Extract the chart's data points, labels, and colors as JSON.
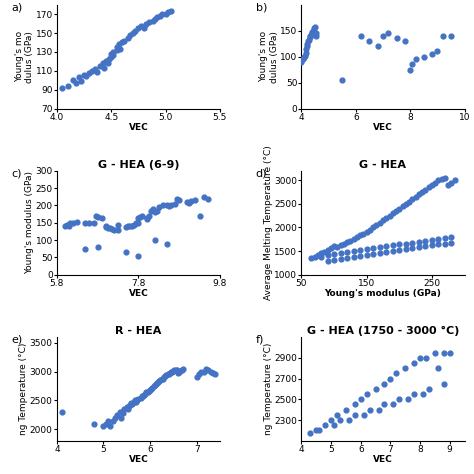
{
  "subplot_a": {
    "title": "",
    "label": "a)",
    "xlabel": "VEC",
    "ylabel": "Young's mo\ndulus (GPa)",
    "xlim": [
      4.0,
      5.5
    ],
    "ylim": [
      70,
      180
    ],
    "xticks": [
      4.0,
      4.5,
      5.0,
      5.5
    ],
    "yticks": [
      70,
      90,
      110,
      130,
      150,
      170
    ],
    "x": [
      4.05,
      4.1,
      4.15,
      4.18,
      4.2,
      4.22,
      4.25,
      4.27,
      4.3,
      4.32,
      4.35,
      4.37,
      4.4,
      4.42,
      4.43,
      4.45,
      4.47,
      4.48,
      4.5,
      4.5,
      4.52,
      4.52,
      4.55,
      4.55,
      4.57,
      4.58,
      4.6,
      4.62,
      4.65,
      4.67,
      4.7,
      4.72,
      4.75,
      4.77,
      4.8,
      4.82,
      4.85,
      4.88,
      4.9,
      4.92,
      4.95,
      4.97,
      5.0,
      5.02,
      5.05
    ],
    "y": [
      92,
      94,
      100,
      97,
      103,
      99,
      106,
      104,
      108,
      110,
      112,
      109,
      115,
      118,
      113,
      120,
      118,
      122,
      125,
      128,
      130,
      127,
      132,
      135,
      138,
      133,
      140,
      142,
      145,
      148,
      150,
      152,
      155,
      158,
      155,
      160,
      162,
      163,
      165,
      167,
      168,
      170,
      170,
      172,
      173
    ]
  },
  "subplot_b": {
    "title": "",
    "label": "b)",
    "xlabel": "VEC",
    "ylabel": "Young's mo\ndulus (GPa)",
    "xlim": [
      4.0,
      10.0
    ],
    "ylim": [
      0,
      200
    ],
    "xticks": [
      4,
      6,
      8,
      10
    ],
    "yticks": [
      0,
      50,
      100,
      150
    ],
    "x": [
      4.0,
      4.05,
      4.1,
      4.12,
      4.15,
      4.18,
      4.2,
      4.22,
      4.25,
      4.28,
      4.3,
      4.32,
      4.35,
      4.38,
      4.4,
      4.42,
      4.45,
      4.47,
      4.5,
      4.52,
      4.55,
      5.5,
      6.2,
      6.5,
      6.8,
      7.0,
      7.2,
      7.5,
      7.8,
      8.0,
      8.05,
      8.2,
      8.5,
      8.8,
      9.0,
      9.2,
      9.5
    ],
    "y": [
      90,
      95,
      100,
      102,
      108,
      115,
      120,
      125,
      130,
      133,
      138,
      140,
      142,
      145,
      148,
      150,
      148,
      155,
      158,
      145,
      140,
      55,
      140,
      130,
      120,
      140,
      145,
      135,
      130,
      75,
      85,
      95,
      100,
      105,
      110,
      140,
      140
    ]
  },
  "subplot_c": {
    "title": "G - HEA (6-9)",
    "label": "c)",
    "xlabel": "VEC",
    "ylabel": "Young's modulus (GPa)",
    "xlim": [
      5.8,
      9.8
    ],
    "ylim": [
      0,
      300
    ],
    "xticks": [
      5.8,
      7.8,
      9.8
    ],
    "yticks": [
      0,
      50,
      100,
      150,
      200,
      250,
      300
    ],
    "x": [
      6.0,
      6.05,
      6.1,
      6.12,
      6.2,
      6.3,
      6.5,
      6.6,
      6.7,
      6.75,
      6.8,
      6.9,
      7.0,
      7.0,
      7.05,
      7.1,
      7.15,
      7.2,
      7.3,
      7.5,
      7.55,
      7.6,
      7.65,
      7.7,
      7.75,
      7.8,
      7.8,
      7.85,
      7.9,
      8.0,
      8.0,
      8.05,
      8.1,
      8.15,
      8.2,
      8.25,
      8.3,
      8.4,
      8.5,
      8.55,
      8.6,
      8.7,
      8.75,
      8.8,
      9.0,
      9.05,
      9.1,
      9.2,
      9.3,
      9.4,
      9.5,
      7.3,
      7.5,
      7.8,
      8.2,
      8.5,
      6.5,
      6.8
    ],
    "y": [
      142,
      145,
      140,
      148,
      148,
      152,
      148,
      150,
      148,
      170,
      168,
      165,
      140,
      138,
      135,
      135,
      132,
      130,
      128,
      138,
      140,
      140,
      142,
      145,
      148,
      150,
      165,
      168,
      170,
      160,
      165,
      170,
      185,
      190,
      180,
      185,
      195,
      200,
      200,
      198,
      202,
      205,
      220,
      215,
      210,
      208,
      212,
      215,
      170,
      225,
      220,
      145,
      65,
      55,
      100,
      90,
      75,
      80
    ]
  },
  "subplot_d": {
    "title": "G - HEA",
    "label": "d)",
    "xlabel": "Young's modulus (GPa)",
    "ylabel": "Average Melting Temperature (°C)",
    "xlim": [
      50,
      300
    ],
    "ylim": [
      1000,
      3200
    ],
    "xticks": [
      50,
      150,
      250
    ],
    "yticks": [
      1000,
      1500,
      2000,
      2500,
      3000
    ],
    "x": [
      65,
      70,
      75,
      80,
      85,
      90,
      95,
      100,
      105,
      110,
      115,
      120,
      125,
      130,
      135,
      140,
      145,
      150,
      155,
      160,
      165,
      170,
      175,
      180,
      185,
      190,
      195,
      200,
      205,
      210,
      215,
      220,
      225,
      230,
      235,
      240,
      245,
      250,
      255,
      260,
      265,
      270,
      275,
      280,
      285,
      80,
      90,
      100,
      110,
      120,
      130,
      140,
      150,
      160,
      170,
      180,
      190,
      200,
      210,
      220,
      230,
      240,
      250,
      260,
      270,
      280,
      90,
      100,
      110,
      120,
      130,
      140,
      150,
      160,
      170,
      180,
      190,
      200,
      210,
      220,
      230,
      240,
      250,
      260,
      270,
      280
    ],
    "y": [
      1350,
      1380,
      1420,
      1460,
      1490,
      1520,
      1560,
      1600,
      1580,
      1620,
      1660,
      1690,
      1720,
      1760,
      1800,
      1840,
      1870,
      1910,
      1950,
      2000,
      2050,
      2100,
      2150,
      2200,
      2250,
      2300,
      2350,
      2400,
      2450,
      2500,
      2550,
      2600,
      2650,
      2700,
      2750,
      2800,
      2850,
      2900,
      2950,
      3000,
      3020,
      3050,
      2900,
      2950,
      3000,
      1380,
      1420,
      1440,
      1470,
      1490,
      1510,
      1520,
      1540,
      1560,
      1580,
      1600,
      1620,
      1640,
      1660,
      1680,
      1700,
      1720,
      1740,
      1760,
      1780,
      1800,
      1300,
      1320,
      1340,
      1360,
      1380,
      1400,
      1420,
      1440,
      1460,
      1480,
      1500,
      1520,
      1540,
      1560,
      1580,
      1600,
      1620,
      1640,
      1660,
      1680
    ]
  },
  "subplot_e": {
    "title": "R - HEA",
    "label": "e)",
    "xlabel": "VEC",
    "ylabel": "ng Temperature (°C)",
    "xlim": [
      4.0,
      7.5
    ],
    "ylim": [
      1800,
      3600
    ],
    "xticks": [
      4,
      5,
      6,
      7
    ],
    "yticks": [
      2000,
      2500,
      3000,
      3500
    ],
    "x": [
      4.1,
      4.8,
      5.0,
      5.05,
      5.1,
      5.15,
      5.2,
      5.25,
      5.3,
      5.35,
      5.38,
      5.4,
      5.42,
      5.45,
      5.5,
      5.52,
      5.55,
      5.57,
      5.6,
      5.62,
      5.65,
      5.68,
      5.7,
      5.72,
      5.75,
      5.8,
      5.82,
      5.85,
      5.88,
      5.9,
      5.92,
      5.95,
      5.98,
      6.0,
      6.02,
      6.05,
      6.08,
      6.1,
      6.12,
      6.15,
      6.18,
      6.2,
      6.22,
      6.25,
      6.28,
      6.3,
      6.32,
      6.35,
      6.38,
      6.4,
      6.42,
      6.45,
      6.48,
      6.5,
      6.52,
      6.55,
      6.58,
      6.6,
      6.62,
      6.65,
      6.68,
      6.7,
      7.0,
      7.05,
      7.1,
      7.15,
      7.2,
      7.25,
      7.3,
      7.35,
      7.4
    ],
    "y": [
      2300,
      2100,
      2050,
      2100,
      2150,
      2050,
      2150,
      2200,
      2250,
      2300,
      2200,
      2300,
      2280,
      2350,
      2380,
      2350,
      2400,
      2420,
      2450,
      2430,
      2470,
      2500,
      2480,
      2510,
      2530,
      2550,
      2580,
      2580,
      2600,
      2620,
      2650,
      2640,
      2670,
      2680,
      2700,
      2720,
      2750,
      2760,
      2780,
      2800,
      2820,
      2840,
      2860,
      2880,
      2880,
      2900,
      2920,
      2940,
      2950,
      2960,
      2980,
      2990,
      3000,
      3010,
      3020,
      3020,
      3030,
      2980,
      3000,
      3010,
      3020,
      3050,
      2900,
      2950,
      3000,
      3000,
      3050,
      3020,
      3000,
      2980,
      2950
    ]
  },
  "subplot_f": {
    "title": "G - HEA (1750 - 3000 °C)",
    "label": "f)",
    "xlabel": "VEC",
    "ylabel": "ng Temperature (°C)",
    "xlim": [
      4.0,
      9.5
    ],
    "ylim": [
      2100,
      3100
    ],
    "xticks": [
      4,
      5,
      6,
      7,
      8,
      9
    ],
    "yticks": [
      2300,
      2500,
      2700,
      2900
    ],
    "x": [
      4.5,
      4.8,
      5.0,
      5.2,
      5.5,
      5.8,
      6.0,
      6.2,
      6.5,
      6.8,
      7.0,
      7.2,
      7.5,
      7.8,
      8.0,
      8.2,
      8.5,
      8.8,
      9.0,
      4.3,
      4.6,
      5.1,
      5.6,
      6.1,
      6.6,
      7.1,
      7.6,
      8.1,
      8.6,
      5.3,
      5.8,
      6.3,
      6.8,
      7.3,
      7.8,
      8.3,
      8.8
    ],
    "y": [
      2200,
      2250,
      2300,
      2350,
      2400,
      2450,
      2500,
      2550,
      2600,
      2650,
      2700,
      2750,
      2800,
      2850,
      2900,
      2900,
      2950,
      2950,
      2950,
      2180,
      2200,
      2250,
      2300,
      2350,
      2400,
      2450,
      2500,
      2550,
      2800,
      2300,
      2350,
      2400,
      2450,
      2500,
      2550,
      2600,
      2650
    ]
  },
  "dot_color": "#4472C4",
  "dot_size": 12,
  "background_color": "#ffffff",
  "label_fontsize": 8,
  "title_fontsize": 8,
  "axis_fontsize": 6.5,
  "tick_fontsize": 6.5
}
